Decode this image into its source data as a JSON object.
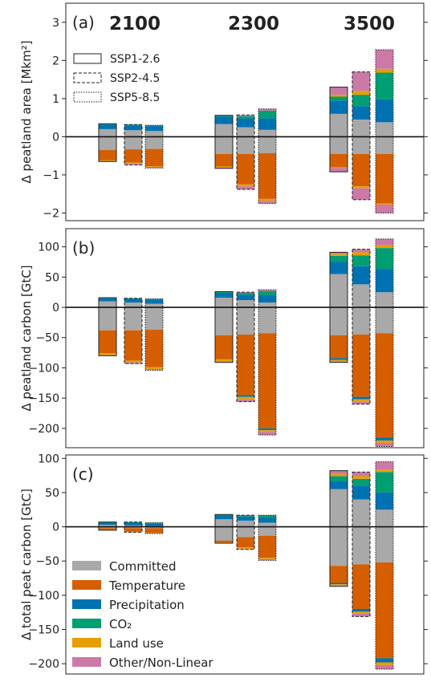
{
  "chart_data": [
    {
      "type": "bar",
      "panel_label": "(a)",
      "ylabel": "Δ peatland area [Mkm²]",
      "ylim": [
        -2.2,
        3.5
      ],
      "yticks": [
        -2,
        -1,
        0,
        1,
        2,
        3
      ],
      "year_labels": [
        "2100",
        "2300",
        "3500"
      ],
      "scenario_legend": [
        "SSP1-2.6",
        "SSP2-4.5",
        "SSP5-8.5"
      ],
      "groups": [
        {
          "year": "2100",
          "scenario": "SSP1-2.6",
          "positive": {
            "Committed": 0.2,
            "Temperature": 0,
            "Precipitation": 0.12,
            "CO2": 0.02,
            "Land use": 0,
            "Other/Non-Linear": 0
          },
          "negative": {
            "Committed": -0.35,
            "Temperature": -0.27,
            "Precipitation": 0,
            "CO2": 0,
            "Land use": -0.02,
            "Other/Non-Linear": -0.01
          }
        },
        {
          "year": "2100",
          "scenario": "SSP2-4.5",
          "positive": {
            "Committed": 0.17,
            "Temperature": 0,
            "Precipitation": 0.13,
            "CO2": 0.02,
            "Land use": 0,
            "Other/Non-Linear": 0
          },
          "negative": {
            "Committed": -0.33,
            "Temperature": -0.35,
            "Precipitation": 0,
            "CO2": 0,
            "Land use": -0.03,
            "Other/Non-Linear": -0.03
          }
        },
        {
          "year": "2100",
          "scenario": "SSP5-8.5",
          "positive": {
            "Committed": 0.15,
            "Temperature": 0,
            "Precipitation": 0.13,
            "CO2": 0.02,
            "Land use": 0,
            "Other/Non-Linear": 0
          },
          "negative": {
            "Committed": -0.32,
            "Temperature": -0.45,
            "Precipitation": 0,
            "CO2": 0,
            "Land use": -0.02,
            "Other/Non-Linear": -0.03
          }
        },
        {
          "year": "2300",
          "scenario": "SSP1-2.6",
          "positive": {
            "Committed": 0.33,
            "Temperature": 0,
            "Precipitation": 0.2,
            "CO2": 0.03,
            "Land use": 0,
            "Other/Non-Linear": 0
          },
          "negative": {
            "Committed": -0.45,
            "Temperature": -0.33,
            "Precipitation": 0,
            "CO2": 0,
            "Land use": -0.03,
            "Other/Non-Linear": -0.02
          }
        },
        {
          "year": "2300",
          "scenario": "SSP2-4.5",
          "positive": {
            "Committed": 0.25,
            "Temperature": 0,
            "Precipitation": 0.23,
            "CO2": 0.06,
            "Land use": 0,
            "Other/Non-Linear": 0.03
          },
          "negative": {
            "Committed": -0.45,
            "Temperature": -0.8,
            "Precipitation": 0,
            "CO2": 0,
            "Land use": -0.05,
            "Other/Non-Linear": -0.08
          }
        },
        {
          "year": "2300",
          "scenario": "SSP5-8.5",
          "positive": {
            "Committed": 0.18,
            "Temperature": 0,
            "Precipitation": 0.3,
            "CO2": 0.2,
            "Land use": 0,
            "Other/Non-Linear": 0.05
          },
          "negative": {
            "Committed": -0.43,
            "Temperature": -1.2,
            "Precipitation": 0,
            "CO2": 0,
            "Land use": -0.05,
            "Other/Non-Linear": -0.07
          }
        },
        {
          "year": "3500",
          "scenario": "SSP1-2.6",
          "positive": {
            "Committed": 0.6,
            "Temperature": 0,
            "Precipitation": 0.35,
            "CO2": 0.1,
            "Land use": 0.05,
            "Other/Non-Linear": 0.2
          },
          "negative": {
            "Committed": -0.45,
            "Temperature": -0.35,
            "Precipitation": 0,
            "CO2": 0,
            "Land use": -0.02,
            "Other/Non-Linear": -0.1
          }
        },
        {
          "year": "3500",
          "scenario": "SSP2-4.5",
          "positive": {
            "Committed": 0.45,
            "Temperature": 0,
            "Precipitation": 0.35,
            "CO2": 0.3,
            "Land use": 0.1,
            "Other/Non-Linear": 0.5
          },
          "negative": {
            "Committed": -0.45,
            "Temperature": -0.85,
            "Precipitation": 0,
            "CO2": 0,
            "Land use": -0.05,
            "Other/Non-Linear": -0.3
          }
        },
        {
          "year": "3500",
          "scenario": "SSP5-8.5",
          "positive": {
            "Committed": 0.38,
            "Temperature": 0,
            "Precipitation": 0.6,
            "CO2": 0.7,
            "Land use": 0.1,
            "Other/Non-Linear": 0.5
          },
          "negative": {
            "Committed": -0.45,
            "Temperature": -1.3,
            "Precipitation": 0,
            "CO2": 0,
            "Land use": -0.03,
            "Other/Non-Linear": -0.22
          }
        }
      ]
    },
    {
      "type": "bar",
      "panel_label": "(b)",
      "ylabel": "Δ peatland carbon [GtC]",
      "ylim": [
        -232,
        130
      ],
      "yticks": [
        -200,
        -150,
        -100,
        -50,
        0,
        50,
        100
      ],
      "groups": [
        {
          "year": "2100",
          "scenario": "SSP1-2.6",
          "positive": {
            "Committed": 10,
            "Temperature": 0,
            "Precipitation": 5,
            "CO2": 1,
            "Land use": 0,
            "Other/Non-Linear": 0
          },
          "negative": {
            "Committed": -38,
            "Temperature": -38,
            "Precipitation": 0,
            "CO2": 0,
            "Land use": -3,
            "Other/Non-Linear": -1
          }
        },
        {
          "year": "2100",
          "scenario": "SSP2-4.5",
          "positive": {
            "Committed": 8,
            "Temperature": 0,
            "Precipitation": 6,
            "CO2": 1,
            "Land use": 0,
            "Other/Non-Linear": 0
          },
          "negative": {
            "Committed": -38,
            "Temperature": -50,
            "Precipitation": 0,
            "CO2": 0,
            "Land use": -3,
            "Other/Non-Linear": -2
          }
        },
        {
          "year": "2100",
          "scenario": "SSP5-8.5",
          "positive": {
            "Committed": 6,
            "Temperature": 0,
            "Precipitation": 6,
            "CO2": 2,
            "Land use": 0,
            "Other/Non-Linear": 0
          },
          "negative": {
            "Committed": -37,
            "Temperature": -62,
            "Precipitation": 0,
            "CO2": 0,
            "Land use": -3,
            "Other/Non-Linear": -2
          }
        },
        {
          "year": "2300",
          "scenario": "SSP1-2.6",
          "positive": {
            "Committed": 16,
            "Temperature": 0,
            "Precipitation": 8,
            "CO2": 2,
            "Land use": 0,
            "Other/Non-Linear": 0
          },
          "negative": {
            "Committed": -46,
            "Temperature": -40,
            "Precipitation": 0,
            "CO2": 0,
            "Land use": -3,
            "Other/Non-Linear": -2
          }
        },
        {
          "year": "2300",
          "scenario": "SSP2-4.5",
          "positive": {
            "Committed": 12,
            "Temperature": 0,
            "Precipitation": 9,
            "CO2": 3,
            "Land use": 0,
            "Other/Non-Linear": 1
          },
          "negative": {
            "Committed": -45,
            "Temperature": -100,
            "Precipitation": -3,
            "CO2": 0,
            "Land use": -4,
            "Other/Non-Linear": -4
          }
        },
        {
          "year": "2300",
          "scenario": "SSP5-8.5",
          "positive": {
            "Committed": 8,
            "Temperature": 0,
            "Precipitation": 12,
            "CO2": 7,
            "Land use": 0,
            "Other/Non-Linear": 2
          },
          "negative": {
            "Committed": -43,
            "Temperature": -157,
            "Precipitation": -3,
            "CO2": 0,
            "Land use": -3,
            "Other/Non-Linear": -5
          }
        },
        {
          "year": "3500",
          "scenario": "SSP1-2.6",
          "positive": {
            "Committed": 55,
            "Temperature": 0,
            "Precipitation": 20,
            "CO2": 10,
            "Land use": 3,
            "Other/Non-Linear": 3
          },
          "negative": {
            "Committed": -46,
            "Temperature": -38,
            "Precipitation": -3,
            "CO2": 0,
            "Land use": -2,
            "Other/Non-Linear": -2
          }
        },
        {
          "year": "3500",
          "scenario": "SSP2-4.5",
          "positive": {
            "Committed": 38,
            "Temperature": 0,
            "Precipitation": 30,
            "CO2": 18,
            "Land use": 5,
            "Other/Non-Linear": 5
          },
          "negative": {
            "Committed": -45,
            "Temperature": -103,
            "Precipitation": -4,
            "CO2": 0,
            "Land use": -4,
            "Other/Non-Linear": -4
          }
        },
        {
          "year": "3500",
          "scenario": "SSP5-8.5",
          "positive": {
            "Committed": 25,
            "Temperature": 0,
            "Precipitation": 38,
            "CO2": 35,
            "Land use": 5,
            "Other/Non-Linear": 10
          },
          "negative": {
            "Committed": -43,
            "Temperature": -172,
            "Precipitation": -5,
            "CO2": 0,
            "Land use": -4,
            "Other/Non-Linear": -6
          }
        }
      ]
    },
    {
      "type": "bar",
      "panel_label": "(c)",
      "ylabel": "Δ total peat carbon [GtC]",
      "ylim": [
        -215,
        105
      ],
      "yticks": [
        -200,
        -150,
        -100,
        -50,
        0,
        50,
        100
      ],
      "groups": [
        {
          "year": "2100",
          "scenario": "SSP1-2.6",
          "positive": {
            "Committed": 3,
            "Temperature": 0,
            "Precipitation": 3,
            "CO2": 1,
            "Land use": 0,
            "Other/Non-Linear": 0
          },
          "negative": {
            "Committed": -2,
            "Temperature": -2,
            "Precipitation": 0,
            "CO2": 0,
            "Land use": -1,
            "Other/Non-Linear": 0
          }
        },
        {
          "year": "2100",
          "scenario": "SSP2-4.5",
          "positive": {
            "Committed": 2,
            "Temperature": 0,
            "Precipitation": 4,
            "CO2": 1,
            "Land use": 0,
            "Other/Non-Linear": 0
          },
          "negative": {
            "Committed": -2,
            "Temperature": -5,
            "Precipitation": 0,
            "CO2": 0,
            "Land use": -1,
            "Other/Non-Linear": 0
          }
        },
        {
          "year": "2100",
          "scenario": "SSP5-8.5",
          "positive": {
            "Committed": 1,
            "Temperature": 0,
            "Precipitation": 4,
            "CO2": 1,
            "Land use": 0,
            "Other/Non-Linear": 0
          },
          "negative": {
            "Committed": -2,
            "Temperature": -7,
            "Precipitation": 0,
            "CO2": 0,
            "Land use": -1,
            "Other/Non-Linear": 0
          }
        },
        {
          "year": "2300",
          "scenario": "SSP1-2.6",
          "positive": {
            "Committed": 11,
            "Temperature": 0,
            "Precipitation": 6,
            "CO2": 1,
            "Land use": 0,
            "Other/Non-Linear": 0
          },
          "negative": {
            "Committed": -20,
            "Temperature": -3,
            "Precipitation": 0,
            "CO2": 0,
            "Land use": -1,
            "Other/Non-Linear": 0
          }
        },
        {
          "year": "2300",
          "scenario": "SSP2-4.5",
          "positive": {
            "Committed": 9,
            "Temperature": 0,
            "Precipitation": 6,
            "CO2": 2,
            "Land use": 0,
            "Other/Non-Linear": 0
          },
          "negative": {
            "Committed": -15,
            "Temperature": -15,
            "Precipitation": 0,
            "CO2": 0,
            "Land use": -2,
            "Other/Non-Linear": -1
          }
        },
        {
          "year": "2300",
          "scenario": "SSP5-8.5",
          "positive": {
            "Committed": 6,
            "Temperature": 0,
            "Precipitation": 7,
            "CO2": 4,
            "Land use": 0,
            "Other/Non-Linear": 0
          },
          "negative": {
            "Committed": -13,
            "Temperature": -32,
            "Precipitation": 0,
            "CO2": 0,
            "Land use": -2,
            "Other/Non-Linear": -2
          }
        },
        {
          "year": "3500",
          "scenario": "SSP1-2.6",
          "positive": {
            "Committed": 55,
            "Temperature": 0,
            "Precipitation": 12,
            "CO2": 7,
            "Land use": 3,
            "Other/Non-Linear": 5
          },
          "negative": {
            "Committed": -57,
            "Temperature": -25,
            "Precipitation": -2,
            "CO2": 0,
            "Land use": -2,
            "Other/Non-Linear": -1
          }
        },
        {
          "year": "3500",
          "scenario": "SSP2-4.5",
          "positive": {
            "Committed": 40,
            "Temperature": 0,
            "Precipitation": 20,
            "CO2": 10,
            "Land use": 4,
            "Other/Non-Linear": 6
          },
          "negative": {
            "Committed": -55,
            "Temperature": -65,
            "Precipitation": -4,
            "CO2": 0,
            "Land use": -3,
            "Other/Non-Linear": -4
          }
        },
        {
          "year": "3500",
          "scenario": "SSP5-8.5",
          "positive": {
            "Committed": 25,
            "Temperature": 0,
            "Precipitation": 25,
            "CO2": 30,
            "Land use": 3,
            "Other/Non-Linear": 12
          },
          "negative": {
            "Committed": -52,
            "Temperature": -140,
            "Precipitation": -6,
            "CO2": 0,
            "Land use": -4,
            "Other/Non-Linear": -6
          }
        }
      ]
    }
  ],
  "driver_legend": [
    {
      "label": "Committed",
      "color": "#a9a9a9"
    },
    {
      "label": "Temperature",
      "color": "#d55e00"
    },
    {
      "label": "Precipitation",
      "color": "#0072b2"
    },
    {
      "label": "CO₂",
      "color": "#009e73"
    },
    {
      "label": "Land use",
      "color": "#e69f00"
    },
    {
      "label": "Other/Non-Linear",
      "color": "#cc79a7"
    }
  ],
  "driver_keys": [
    "Committed",
    "Temperature",
    "Precipitation",
    "CO2",
    "Land use",
    "Other/Non-Linear"
  ]
}
